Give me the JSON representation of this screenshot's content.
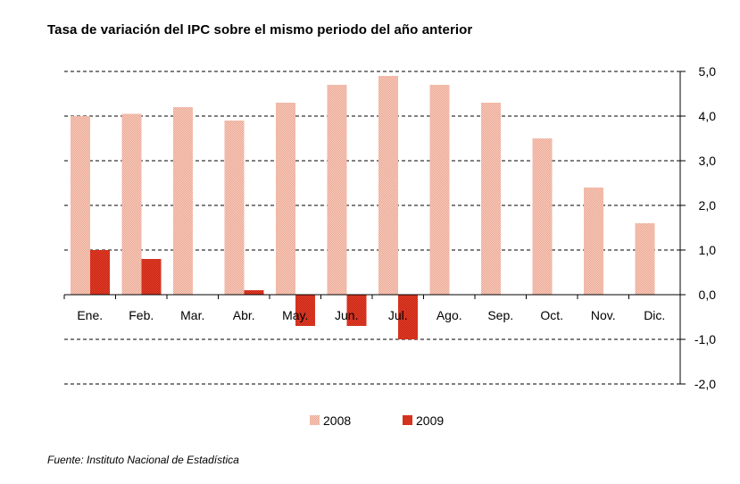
{
  "title": "Tasa de variación del IPC sobre el mismo periodo del año anterior",
  "source": "Fuente: Instituto Nacional de Estadística",
  "colors": {
    "series_2008": "#f2b9a6",
    "series_2009": "#d9301e",
    "grid": "#000000"
  },
  "chart_data": {
    "type": "bar",
    "title": "Tasa de variación del IPC sobre el mismo periodo del año anterior",
    "categories": [
      "Ene.",
      "Feb.",
      "Mar.",
      "Abr.",
      "May.",
      "Jun.",
      "Jul.",
      "Ago.",
      "Sep.",
      "Oct.",
      "Nov.",
      "Dic."
    ],
    "series": [
      {
        "name": "2008",
        "values": [
          4.0,
          4.05,
          4.2,
          3.9,
          4.3,
          4.7,
          4.9,
          4.7,
          4.3,
          3.5,
          2.4,
          1.6
        ]
      },
      {
        "name": "2009",
        "values": [
          1.0,
          0.8,
          0.0,
          0.1,
          -0.7,
          -0.7,
          -1.0,
          null,
          null,
          null,
          null,
          null
        ]
      }
    ],
    "yticks": [
      "5,0",
      "4,0",
      "3,0",
      "2,0",
      "1,0",
      "0,0",
      "-1,0",
      "-2,0"
    ],
    "ylim": [
      -2,
      5
    ],
    "y_axis_side": "right",
    "grid": true,
    "legend_position": "bottom-center"
  }
}
